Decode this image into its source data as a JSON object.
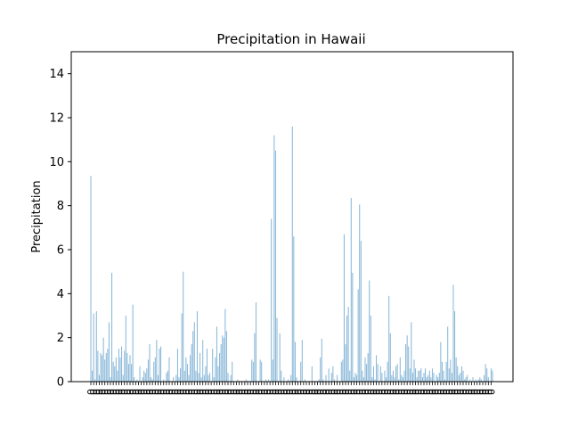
{
  "chart_data": {
    "type": "bar",
    "title": "Precipitation in Hawaii",
    "xlabel": "",
    "ylabel": "Precipitation",
    "ylim": [
      0,
      15
    ],
    "yticks": [
      0,
      2,
      4,
      6,
      8,
      10,
      12,
      14
    ],
    "grid": false,
    "legend": "none",
    "bar_color": "#1f77b4",
    "x_tick_text": "0",
    "values": [
      9.35,
      0.5,
      3.1,
      0.1,
      3.2,
      1.4,
      0.3,
      1.3,
      1.2,
      2.0,
      1.0,
      1.3,
      1.5,
      2.7,
      0.2,
      4.95,
      0.9,
      0.7,
      1.1,
      0.5,
      1.5,
      1.1,
      1.6,
      0.3,
      1.4,
      3.0,
      1.3,
      0.8,
      1.2,
      0.8,
      3.5,
      0.2,
      0.0,
      0.1,
      0.0,
      0.7,
      0.0,
      0.2,
      0.5,
      0.4,
      0.6,
      1.0,
      1.7,
      0.2,
      0.1,
      0.9,
      1.1,
      1.9,
      0.3,
      1.5,
      1.6,
      0.0,
      0.1,
      0.0,
      0.4,
      0.5,
      1.1,
      0.0,
      0.0,
      0.2,
      0.0,
      0.3,
      1.5,
      0.2,
      0.6,
      3.1,
      5.0,
      0.5,
      1.1,
      0.8,
      0.3,
      1.2,
      1.7,
      2.3,
      2.7,
      0.5,
      3.2,
      0.4,
      1.3,
      0.2,
      1.9,
      0.3,
      0.7,
      1.5,
      0.3,
      0.4,
      0.0,
      1.5,
      0.2,
      1.1,
      2.5,
      0.7,
      1.3,
      1.7,
      2.1,
      2.0,
      3.3,
      2.3,
      0.4,
      0.0,
      0.3,
      0.9,
      0.0,
      0.0,
      0.0,
      0.1,
      0.0,
      0.0,
      0.0,
      0.0,
      0.0,
      0.1,
      0.0,
      0.0,
      0.0,
      1.0,
      0.9,
      2.2,
      3.6,
      0.0,
      0.0,
      1.0,
      0.9,
      0.0,
      0.0,
      0.1,
      0.0,
      0.1,
      0.0,
      7.4,
      1.0,
      11.2,
      10.5,
      2.9,
      0.0,
      2.2,
      0.5,
      0.0,
      0.2,
      0.0,
      0.0,
      0.1,
      0.0,
      0.3,
      11.6,
      6.6,
      1.8,
      0.2,
      0.0,
      0.0,
      0.9,
      1.9,
      0.0,
      0.1,
      0.0,
      0.0,
      0.0,
      0.0,
      0.7,
      0.0,
      0.0,
      0.0,
      0.0,
      0.1,
      1.1,
      1.95,
      0.1,
      0.0,
      0.3,
      0.0,
      0.6,
      0.0,
      0.4,
      0.7,
      0.1,
      0.0,
      0.3,
      0.0,
      0.0,
      0.9,
      1.0,
      6.7,
      1.7,
      3.0,
      3.4,
      0.5,
      8.35,
      4.95,
      0.2,
      0.4,
      0.3,
      4.2,
      8.05,
      6.4,
      0.5,
      0.2,
      1.1,
      0.8,
      1.3,
      4.6,
      3.0,
      0.2,
      0.7,
      0.1,
      1.2,
      0.8,
      0.0,
      0.7,
      0.4,
      0.0,
      0.5,
      0.2,
      0.9,
      3.9,
      2.2,
      0.3,
      0.5,
      0.2,
      0.7,
      0.8,
      0.1,
      1.1,
      0.3,
      0.2,
      0.5,
      1.7,
      2.1,
      1.6,
      0.6,
      2.7,
      0.4,
      1.0,
      0.6,
      0.2,
      0.5,
      0.5,
      0.6,
      0.2,
      0.4,
      0.6,
      0.2,
      0.3,
      0.5,
      0.2,
      0.6,
      0.4,
      0.0,
      0.3,
      0.2,
      0.4,
      1.8,
      0.9,
      0.5,
      0.1,
      0.9,
      2.5,
      0.6,
      1.0,
      0.4,
      4.4,
      3.2,
      1.1,
      0.7,
      0.3,
      0.4,
      0.7,
      0.5,
      0.1,
      0.2,
      0.3,
      0.0,
      0.1,
      0.0,
      0.2,
      0.0,
      0.1,
      0.0,
      0.1,
      0.2,
      0.1,
      0.0,
      0.3,
      0.8,
      0.6,
      0.2,
      0.0,
      0.6,
      0.5
    ]
  }
}
